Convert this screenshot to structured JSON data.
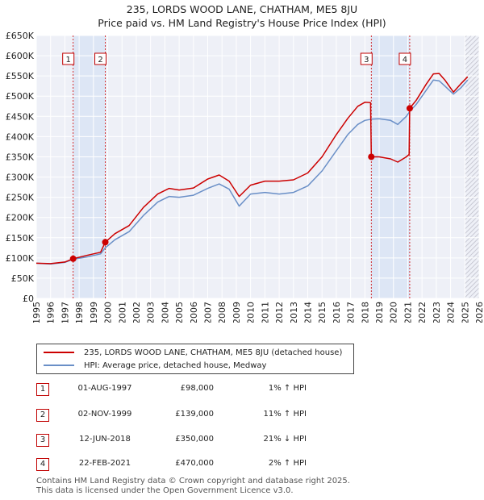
{
  "title_line1": "235, LORDS WOOD LANE, CHATHAM, ME5 8JU",
  "title_line2": "Price paid vs. HM Land Registry's House Price Index (HPI)",
  "chart_data": {
    "type": "line",
    "title": "235, LORDS WOOD LANE, CHATHAM, ME5 8JU — Price paid vs. HM Land Registry's House Price Index (HPI)",
    "xlabel": "",
    "ylabel": "",
    "xlim": [
      1995,
      2026
    ],
    "ylim": [
      0,
      650000
    ],
    "x_ticks": [
      1995,
      1996,
      1997,
      1998,
      1999,
      2000,
      2001,
      2002,
      2003,
      2004,
      2005,
      2006,
      2007,
      2008,
      2009,
      2010,
      2011,
      2012,
      2013,
      2014,
      2015,
      2016,
      2017,
      2018,
      2019,
      2020,
      2021,
      2022,
      2023,
      2024,
      2025,
      2026
    ],
    "y_ticks": [
      0,
      50000,
      100000,
      150000,
      200000,
      250000,
      300000,
      350000,
      400000,
      450000,
      500000,
      550000,
      600000,
      650000
    ],
    "y_tick_labels": [
      "£0",
      "£50K",
      "£100K",
      "£150K",
      "£200K",
      "£250K",
      "£300K",
      "£350K",
      "£400K",
      "£450K",
      "£500K",
      "£550K",
      "£600K",
      "£650K"
    ],
    "grid": true,
    "series": [
      {
        "name": "235, LORDS WOOD LANE, CHATHAM, ME5 8JU (detached house)",
        "color": "#cc0000",
        "points": [
          [
            1995.0,
            87000
          ],
          [
            1996.0,
            86000
          ],
          [
            1997.0,
            90000
          ],
          [
            1997.58,
            98000
          ],
          [
            1998.5,
            106000
          ],
          [
            1999.5,
            114000
          ],
          [
            1999.83,
            139000
          ],
          [
            2000.5,
            160000
          ],
          [
            2001.5,
            180000
          ],
          [
            2002.5,
            225000
          ],
          [
            2003.5,
            258000
          ],
          [
            2004.3,
            272000
          ],
          [
            2005.0,
            268000
          ],
          [
            2006.0,
            273000
          ],
          [
            2007.0,
            295000
          ],
          [
            2007.8,
            305000
          ],
          [
            2008.5,
            290000
          ],
          [
            2009.2,
            252000
          ],
          [
            2010.0,
            280000
          ],
          [
            2011.0,
            290000
          ],
          [
            2012.0,
            290000
          ],
          [
            2013.0,
            293000
          ],
          [
            2014.0,
            310000
          ],
          [
            2015.0,
            350000
          ],
          [
            2016.0,
            405000
          ],
          [
            2016.8,
            445000
          ],
          [
            2017.5,
            475000
          ],
          [
            2018.0,
            485000
          ],
          [
            2018.4,
            484000
          ],
          [
            2018.45,
            350000
          ],
          [
            2019.0,
            350000
          ],
          [
            2019.8,
            345000
          ],
          [
            2020.3,
            337000
          ],
          [
            2020.9,
            350000
          ],
          [
            2021.1,
            356000
          ],
          [
            2021.14,
            470000
          ],
          [
            2021.6,
            490000
          ],
          [
            2022.3,
            530000
          ],
          [
            2022.8,
            555000
          ],
          [
            2023.2,
            556000
          ],
          [
            2023.6,
            540000
          ],
          [
            2024.2,
            510000
          ],
          [
            2024.7,
            530000
          ],
          [
            2025.2,
            548000
          ]
        ]
      },
      {
        "name": "HPI: Average price, detached house, Medway",
        "color": "#6a8fc7",
        "points": [
          [
            1995.0,
            87000
          ],
          [
            1996.0,
            85000
          ],
          [
            1997.0,
            89000
          ],
          [
            1997.58,
            97000
          ],
          [
            1998.5,
            102000
          ],
          [
            1999.5,
            110000
          ],
          [
            1999.83,
            125000
          ],
          [
            2000.5,
            145000
          ],
          [
            2001.5,
            165000
          ],
          [
            2002.5,
            205000
          ],
          [
            2003.5,
            238000
          ],
          [
            2004.3,
            252000
          ],
          [
            2005.0,
            250000
          ],
          [
            2006.0,
            255000
          ],
          [
            2007.0,
            272000
          ],
          [
            2007.8,
            283000
          ],
          [
            2008.5,
            270000
          ],
          [
            2009.2,
            228000
          ],
          [
            2010.0,
            258000
          ],
          [
            2011.0,
            262000
          ],
          [
            2012.0,
            258000
          ],
          [
            2013.0,
            262000
          ],
          [
            2014.0,
            278000
          ],
          [
            2015.0,
            315000
          ],
          [
            2016.0,
            365000
          ],
          [
            2016.8,
            405000
          ],
          [
            2017.5,
            430000
          ],
          [
            2018.0,
            440000
          ],
          [
            2018.45,
            443000
          ],
          [
            2019.0,
            444000
          ],
          [
            2019.8,
            440000
          ],
          [
            2020.3,
            430000
          ],
          [
            2020.9,
            450000
          ],
          [
            2021.14,
            462000
          ],
          [
            2021.6,
            480000
          ],
          [
            2022.3,
            515000
          ],
          [
            2022.8,
            540000
          ],
          [
            2023.2,
            538000
          ],
          [
            2023.6,
            525000
          ],
          [
            2024.2,
            505000
          ],
          [
            2024.7,
            520000
          ],
          [
            2025.2,
            540000
          ]
        ]
      }
    ],
    "sales": [
      {
        "label": "1",
        "x": 1997.58,
        "y": 98000
      },
      {
        "label": "2",
        "x": 1999.83,
        "y": 139000
      },
      {
        "label": "3",
        "x": 2018.45,
        "y": 350000
      },
      {
        "label": "4",
        "x": 2021.14,
        "y": 470000
      }
    ],
    "shaded_ranges": [
      [
        1997.58,
        1999.83
      ],
      [
        2018.45,
        2021.14
      ]
    ],
    "forecast_from": 2025.0
  },
  "legend": {
    "property_label": "235, LORDS WOOD LANE, CHATHAM, ME5 8JU (detached house)",
    "hpi_label": "HPI: Average price, detached house, Medway",
    "property_color": "#cc0000",
    "hpi_color": "#6a8fc7"
  },
  "transactions": [
    {
      "num": "1",
      "date": "01-AUG-1997",
      "price": "£98,000",
      "hpi": "1% ↑ HPI"
    },
    {
      "num": "2",
      "date": "02-NOV-1999",
      "price": "£139,000",
      "hpi": "11% ↑ HPI"
    },
    {
      "num": "3",
      "date": "12-JUN-2018",
      "price": "£350,000",
      "hpi": "21% ↓ HPI"
    },
    {
      "num": "4",
      "date": "22-FEB-2021",
      "price": "£470,000",
      "hpi": "2% ↑ HPI"
    }
  ],
  "footer": {
    "line1": "Contains HM Land Registry data © Crown copyright and database right 2025.",
    "line2": "This data is licensed under the Open Government Licence v3.0."
  }
}
